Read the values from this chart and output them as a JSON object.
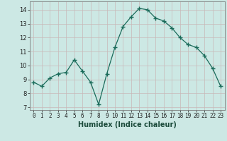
{
  "x": [
    0,
    1,
    2,
    3,
    4,
    5,
    6,
    7,
    8,
    9,
    10,
    11,
    12,
    13,
    14,
    15,
    16,
    17,
    18,
    19,
    20,
    21,
    22,
    23
  ],
  "y": [
    8.8,
    8.5,
    9.1,
    9.4,
    9.5,
    10.4,
    9.6,
    8.8,
    7.2,
    9.4,
    11.3,
    12.8,
    13.5,
    14.1,
    14.0,
    13.4,
    13.2,
    12.7,
    12.0,
    11.5,
    11.3,
    10.7,
    9.8,
    8.5
  ],
  "line_color": "#1a6b5a",
  "marker": "+",
  "marker_size": 4,
  "bg_color": "#cce8e4",
  "grid_color": "#c8b8b8",
  "xlabel": "Humidex (Indice chaleur)",
  "ylabel_ticks": [
    7,
    8,
    9,
    10,
    11,
    12,
    13,
    14
  ],
  "xlim": [
    -0.5,
    23.5
  ],
  "ylim": [
    6.8,
    14.6
  ],
  "tick_fontsize": 5.5,
  "xlabel_fontsize": 7
}
